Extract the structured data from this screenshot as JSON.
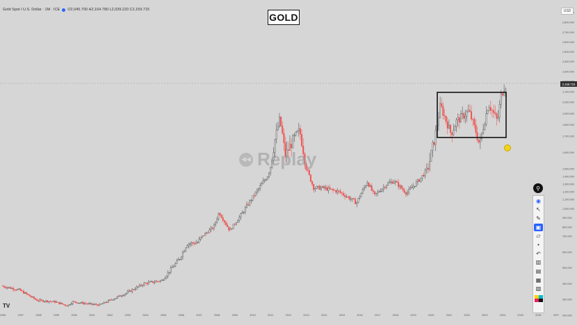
{
  "header": {
    "symbol_line": "Gold Spot / U.S. Dollar · 1M · ICE",
    "ohlc": "O2,045.700 H2,164.780 L2,039.220 C2,159.715"
  },
  "title": "GOLD",
  "currency": "USD",
  "watermark": "Replay",
  "tv_logo": "TV",
  "price_label": "2,159.715",
  "toolbar": {
    "pin_icon": "pin-icon",
    "tools": [
      {
        "name": "eye-icon",
        "glyph": "◉"
      },
      {
        "name": "cursor-icon",
        "glyph": "↖"
      },
      {
        "name": "pencil-icon",
        "glyph": "✎"
      },
      {
        "name": "magnet-icon",
        "glyph": "▣"
      },
      {
        "name": "ruler-icon",
        "glyph": "▱"
      },
      {
        "name": "dot-icon",
        "glyph": "•"
      },
      {
        "name": "undo-icon",
        "glyph": "↶"
      },
      {
        "name": "trash-icon",
        "glyph": "🗑"
      },
      {
        "name": "layers-icon",
        "glyph": "▤"
      },
      {
        "name": "camera-icon",
        "glyph": "▦"
      },
      {
        "name": "clipboard-icon",
        "glyph": "▧"
      }
    ],
    "swatch_colors": [
      "#ffd400",
      "#00bcd4",
      "#e91e63",
      "#111111"
    ]
  },
  "colors": {
    "background": "#d6d6d6",
    "up": "#26a69a",
    "down": "#ef5350",
    "candle": "#555555",
    "range_box": "#111111",
    "price_tag": "#333333"
  },
  "chart_data": {
    "type": "candlestick",
    "symbol": "Gold Spot / U.S. Dollar",
    "interval": "1M",
    "x_tick_labels": [
      "1996",
      "1997",
      "1998",
      "1999",
      "2000",
      "2001",
      "2002",
      "2003",
      "2004",
      "2005",
      "2006",
      "2007",
      "2008",
      "2009",
      "2010",
      "2011",
      "2012",
      "2013",
      "2014",
      "2015",
      "2016",
      "2017",
      "2018",
      "2019",
      "2020",
      "2021",
      "2022",
      "2023",
      "2024",
      "2025",
      "2026",
      "2027"
    ],
    "y_tick_labels": [
      "2,900.000",
      "2,800.000",
      "2,700.000",
      "2,600.000",
      "2,500.000",
      "2,400.000",
      "2,300.000",
      "2,200.000",
      "2,100.000",
      "2,000.000",
      "1,900.000",
      "1,800.000",
      "1,700.000",
      "1,600.000",
      "1,500.000",
      "1,400.000",
      "1,300.000",
      "1,200.000",
      "1,100.000",
      "1,000.000",
      "900.000",
      "800.000",
      "700.000",
      "600.000",
      "500.000",
      "400.000",
      "300.000",
      "200.000"
    ],
    "y_scale": "log",
    "ylim": [
      200,
      3000
    ],
    "last_price": 2159.715,
    "highlighted_range": {
      "x_start": 2020.6,
      "x_end": 2024.2,
      "y_low": 1680,
      "y_high": 2080
    },
    "key_points": [
      {
        "x": 1996.0,
        "y": 385
      },
      {
        "x": 1997.0,
        "y": 360
      },
      {
        "x": 1998.0,
        "y": 295
      },
      {
        "x": 1999.0,
        "y": 285
      },
      {
        "x": 1999.7,
        "y": 260
      },
      {
        "x": 2000.0,
        "y": 285
      },
      {
        "x": 2001.0,
        "y": 270
      },
      {
        "x": 2001.5,
        "y": 265
      },
      {
        "x": 2002.0,
        "y": 290
      },
      {
        "x": 2003.0,
        "y": 340
      },
      {
        "x": 2004.0,
        "y": 400
      },
      {
        "x": 2005.0,
        "y": 420
      },
      {
        "x": 2006.0,
        "y": 560
      },
      {
        "x": 2006.4,
        "y": 650
      },
      {
        "x": 2007.0,
        "y": 660
      },
      {
        "x": 2007.9,
        "y": 800
      },
      {
        "x": 2008.2,
        "y": 960
      },
      {
        "x": 2008.8,
        "y": 760
      },
      {
        "x": 2009.5,
        "y": 950
      },
      {
        "x": 2010.0,
        "y": 1100
      },
      {
        "x": 2010.9,
        "y": 1400
      },
      {
        "x": 2011.6,
        "y": 1850
      },
      {
        "x": 2011.9,
        "y": 1580
      },
      {
        "x": 2012.7,
        "y": 1750
      },
      {
        "x": 2013.5,
        "y": 1250
      },
      {
        "x": 2014.0,
        "y": 1250
      },
      {
        "x": 2014.9,
        "y": 1200
      },
      {
        "x": 2015.9,
        "y": 1060
      },
      {
        "x": 2016.5,
        "y": 1330
      },
      {
        "x": 2016.9,
        "y": 1150
      },
      {
        "x": 2017.6,
        "y": 1300
      },
      {
        "x": 2018.0,
        "y": 1340
      },
      {
        "x": 2018.7,
        "y": 1180
      },
      {
        "x": 2019.4,
        "y": 1350
      },
      {
        "x": 2019.9,
        "y": 1500
      },
      {
        "x": 2020.3,
        "y": 1700
      },
      {
        "x": 2020.6,
        "y": 1970
      },
      {
        "x": 2021.2,
        "y": 1720
      },
      {
        "x": 2021.5,
        "y": 1830
      },
      {
        "x": 2022.2,
        "y": 1920
      },
      {
        "x": 2022.8,
        "y": 1640
      },
      {
        "x": 2023.3,
        "y": 1990
      },
      {
        "x": 2023.8,
        "y": 1830
      },
      {
        "x": 2024.0,
        "y": 2060
      },
      {
        "x": 2024.2,
        "y": 2160
      }
    ]
  }
}
